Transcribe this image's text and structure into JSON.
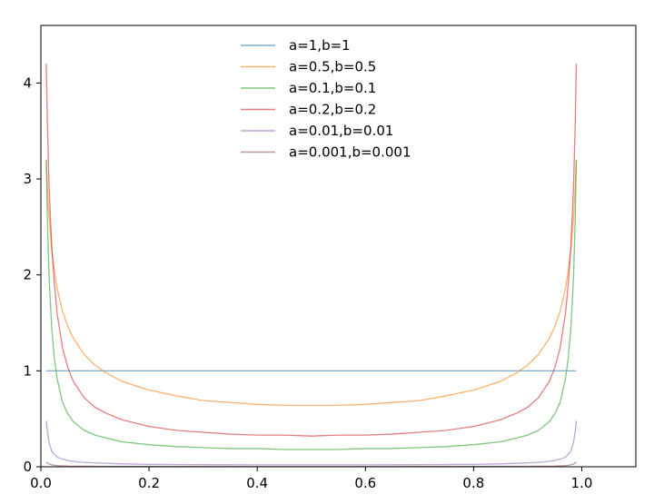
{
  "chart_data": {
    "type": "line",
    "title": "",
    "xlabel": "",
    "ylabel": "",
    "xlim": [
      0.0,
      1.1
    ],
    "ylim": [
      0.0,
      4.6
    ],
    "x_ticks": [
      0.0,
      0.2,
      0.4,
      0.6,
      0.8,
      1.0
    ],
    "x_tick_labels": [
      "0.0",
      "0.2",
      "0.4",
      "0.6",
      "0.8",
      "1.0"
    ],
    "y_ticks": [
      0,
      1,
      2,
      3,
      4
    ],
    "y_tick_labels": [
      "0",
      "1",
      "2",
      "3",
      "4"
    ],
    "grid": false,
    "legend_position": "top-center",
    "series": [
      {
        "name": "a=1,b=1",
        "color": "#1f77b4",
        "x": [
          0.01,
          0.99
        ],
        "y": [
          1.0,
          1.0
        ]
      },
      {
        "name": "a=0.5,b=0.5",
        "color": "#ff7f0e",
        "x": [
          0.01,
          0.012,
          0.015,
          0.02,
          0.025,
          0.03,
          0.04,
          0.05,
          0.06,
          0.08,
          0.1,
          0.12,
          0.15,
          0.2,
          0.25,
          0.3,
          0.35,
          0.4,
          0.45,
          0.5,
          0.55,
          0.6,
          0.65,
          0.7,
          0.75,
          0.8,
          0.85,
          0.88,
          0.9,
          0.92,
          0.94,
          0.95,
          0.96,
          0.97,
          0.975,
          0.98,
          0.985,
          0.988,
          0.99
        ],
        "y": [
          3.2,
          2.92,
          2.62,
          2.27,
          2.04,
          1.86,
          1.62,
          1.46,
          1.34,
          1.17,
          1.06,
          0.98,
          0.89,
          0.8,
          0.74,
          0.69,
          0.67,
          0.65,
          0.64,
          0.64,
          0.64,
          0.65,
          0.67,
          0.69,
          0.74,
          0.8,
          0.89,
          0.98,
          1.06,
          1.17,
          1.34,
          1.46,
          1.62,
          1.86,
          2.04,
          2.27,
          2.62,
          2.92,
          3.2
        ]
      },
      {
        "name": "a=0.1,b=0.1",
        "color": "#2ca02c",
        "x": [
          0.01,
          0.012,
          0.015,
          0.02,
          0.025,
          0.03,
          0.04,
          0.05,
          0.06,
          0.08,
          0.1,
          0.12,
          0.15,
          0.2,
          0.25,
          0.3,
          0.35,
          0.4,
          0.45,
          0.5,
          0.55,
          0.6,
          0.65,
          0.7,
          0.75,
          0.8,
          0.85,
          0.88,
          0.9,
          0.92,
          0.94,
          0.95,
          0.96,
          0.97,
          0.975,
          0.98,
          0.985,
          0.988,
          0.99
        ],
        "y": [
          3.2,
          2.6,
          2.0,
          1.45,
          1.13,
          0.92,
          0.67,
          0.55,
          0.47,
          0.38,
          0.33,
          0.3,
          0.26,
          0.23,
          0.21,
          0.2,
          0.19,
          0.19,
          0.18,
          0.18,
          0.18,
          0.19,
          0.19,
          0.2,
          0.21,
          0.23,
          0.26,
          0.3,
          0.33,
          0.38,
          0.47,
          0.55,
          0.67,
          0.92,
          1.13,
          1.45,
          2.0,
          2.6,
          3.2
        ]
      },
      {
        "name": "a=0.2,b=0.2",
        "color": "#d62728",
        "x": [
          0.01,
          0.012,
          0.015,
          0.02,
          0.025,
          0.03,
          0.04,
          0.05,
          0.06,
          0.08,
          0.1,
          0.12,
          0.15,
          0.2,
          0.25,
          0.3,
          0.35,
          0.4,
          0.45,
          0.5,
          0.55,
          0.6,
          0.65,
          0.7,
          0.75,
          0.8,
          0.85,
          0.88,
          0.9,
          0.92,
          0.94,
          0.95,
          0.96,
          0.97,
          0.975,
          0.98,
          0.985,
          0.988,
          0.99
        ],
        "y": [
          4.2,
          3.6,
          2.95,
          2.3,
          1.9,
          1.6,
          1.24,
          1.03,
          0.89,
          0.72,
          0.62,
          0.56,
          0.49,
          0.42,
          0.38,
          0.36,
          0.34,
          0.33,
          0.33,
          0.32,
          0.33,
          0.33,
          0.34,
          0.36,
          0.38,
          0.42,
          0.49,
          0.56,
          0.62,
          0.72,
          0.89,
          1.03,
          1.24,
          1.6,
          1.9,
          2.3,
          2.95,
          3.6,
          4.2
        ]
      },
      {
        "name": "a=0.01,b=0.01",
        "color": "#9467bd",
        "x": [
          0.01,
          0.012,
          0.015,
          0.02,
          0.03,
          0.04,
          0.05,
          0.07,
          0.1,
          0.15,
          0.2,
          0.3,
          0.4,
          0.5,
          0.6,
          0.7,
          0.8,
          0.85,
          0.9,
          0.93,
          0.95,
          0.96,
          0.97,
          0.98,
          0.985,
          0.988,
          0.99
        ],
        "y": [
          0.48,
          0.37,
          0.26,
          0.16,
          0.1,
          0.08,
          0.065,
          0.05,
          0.04,
          0.03,
          0.025,
          0.022,
          0.02,
          0.02,
          0.02,
          0.022,
          0.025,
          0.03,
          0.04,
          0.05,
          0.065,
          0.08,
          0.1,
          0.16,
          0.26,
          0.37,
          0.48
        ]
      },
      {
        "name": "a=0.001,b=0.001",
        "color": "#8c564b",
        "x": [
          0.01,
          0.012,
          0.015,
          0.02,
          0.03,
          0.05,
          0.1,
          0.2,
          0.5,
          0.8,
          0.9,
          0.95,
          0.97,
          0.98,
          0.985,
          0.988,
          0.99
        ],
        "y": [
          0.05,
          0.04,
          0.03,
          0.02,
          0.012,
          0.007,
          0.004,
          0.003,
          0.002,
          0.003,
          0.004,
          0.007,
          0.012,
          0.02,
          0.03,
          0.04,
          0.05
        ]
      }
    ]
  }
}
